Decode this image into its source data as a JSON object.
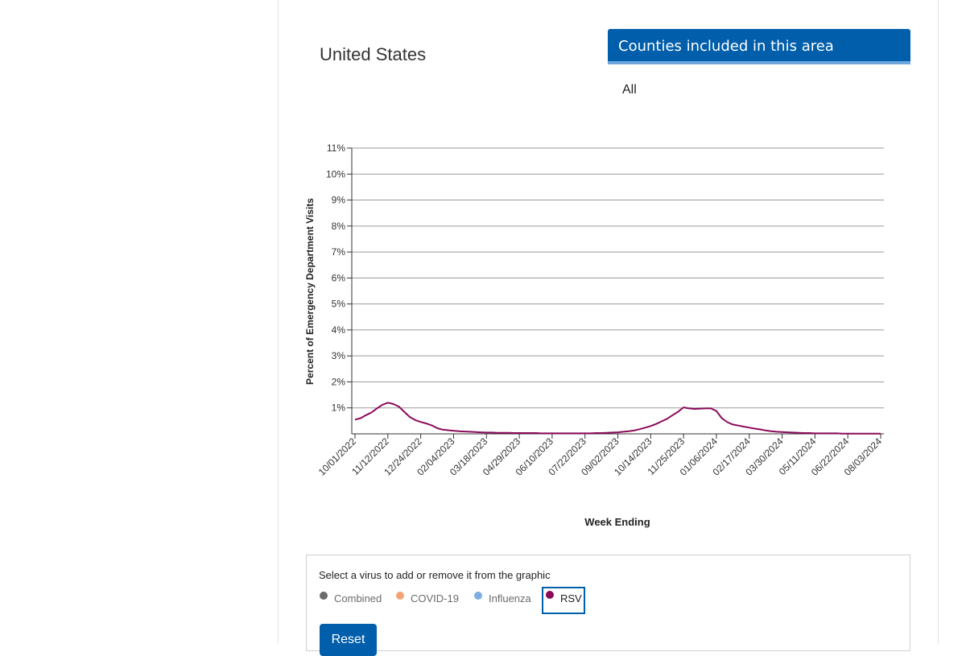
{
  "area": {
    "title": "United States"
  },
  "counties": {
    "header": "Counties included in this area",
    "value": "All"
  },
  "legend": {
    "instruction": "Select a virus to add or remove it from the graphic",
    "items": [
      {
        "label": "Combined",
        "color": "#6b6b6b",
        "active": false
      },
      {
        "label": "COVID-19",
        "color": "#f2a474",
        "active": false
      },
      {
        "label": "Influenza",
        "color": "#7eaee3",
        "active": false
      },
      {
        "label": "RSV",
        "color": "#8b0a5a",
        "active": true
      }
    ],
    "reset_label": "Reset"
  },
  "chart_data": {
    "type": "line",
    "title": "",
    "xlabel": "Week Ending",
    "ylabel": "Percent of Emergency Department Visits",
    "ylim": [
      0,
      11
    ],
    "y_ticks": [
      "1%",
      "2%",
      "3%",
      "4%",
      "5%",
      "6%",
      "7%",
      "8%",
      "9%",
      "10%",
      "11%"
    ],
    "x_tick_labels": [
      "10/01/2022",
      "11/12/2022",
      "12/24/2022",
      "02/04/2023",
      "03/18/2023",
      "04/29/2023",
      "06/10/2023",
      "07/22/2023",
      "09/02/2023",
      "10/14/2023",
      "11/25/2023",
      "01/06/2024",
      "02/17/2024",
      "03/30/2024",
      "05/11/2024",
      "06/22/2024",
      "08/03/2024"
    ],
    "grid": true,
    "series": [
      {
        "name": "RSV",
        "color": "#8b0a5a",
        "x": [
          "10/01/2022",
          "10/08/2022",
          "10/15/2022",
          "10/22/2022",
          "10/29/2022",
          "11/05/2022",
          "11/12/2022",
          "11/19/2022",
          "11/26/2022",
          "12/03/2022",
          "12/10/2022",
          "12/17/2022",
          "12/24/2022",
          "12/31/2022",
          "01/07/2023",
          "01/14/2023",
          "01/21/2023",
          "01/28/2023",
          "02/04/2023",
          "02/11/2023",
          "02/18/2023",
          "02/25/2023",
          "03/04/2023",
          "03/11/2023",
          "03/18/2023",
          "03/25/2023",
          "04/01/2023",
          "04/08/2023",
          "04/15/2023",
          "04/22/2023",
          "04/29/2023",
          "05/06/2023",
          "05/13/2023",
          "05/20/2023",
          "05/27/2023",
          "06/03/2023",
          "06/10/2023",
          "06/17/2023",
          "06/24/2023",
          "07/01/2023",
          "07/08/2023",
          "07/15/2023",
          "07/22/2023",
          "07/29/2023",
          "08/05/2023",
          "08/12/2023",
          "08/19/2023",
          "08/26/2023",
          "09/02/2023",
          "09/09/2023",
          "09/16/2023",
          "09/23/2023",
          "09/30/2023",
          "10/07/2023",
          "10/14/2023",
          "10/21/2023",
          "10/28/2023",
          "11/04/2023",
          "11/11/2023",
          "11/18/2023",
          "11/25/2023",
          "12/02/2023",
          "12/09/2023",
          "12/16/2023",
          "12/23/2023",
          "12/30/2023",
          "01/06/2024",
          "01/13/2024",
          "01/20/2024",
          "01/27/2024",
          "02/03/2024",
          "02/10/2024",
          "02/17/2024",
          "02/24/2024",
          "03/02/2024",
          "03/09/2024",
          "03/16/2024",
          "03/23/2024",
          "03/30/2024",
          "04/06/2024",
          "04/13/2024",
          "04/20/2024",
          "04/27/2024",
          "05/04/2024",
          "05/11/2024",
          "05/18/2024",
          "05/25/2024",
          "06/01/2024",
          "06/08/2024",
          "06/15/2024",
          "06/22/2024",
          "06/29/2024",
          "07/06/2024",
          "07/13/2024",
          "07/20/2024",
          "07/27/2024",
          "08/03/2024"
        ],
        "y": [
          0.55,
          0.6,
          0.72,
          0.82,
          0.98,
          1.12,
          1.2,
          1.15,
          1.05,
          0.85,
          0.65,
          0.53,
          0.46,
          0.4,
          0.33,
          0.22,
          0.16,
          0.14,
          0.12,
          0.1,
          0.09,
          0.08,
          0.07,
          0.06,
          0.05,
          0.05,
          0.04,
          0.04,
          0.04,
          0.03,
          0.03,
          0.03,
          0.03,
          0.03,
          0.02,
          0.02,
          0.02,
          0.02,
          0.02,
          0.02,
          0.02,
          0.02,
          0.02,
          0.02,
          0.03,
          0.03,
          0.04,
          0.05,
          0.06,
          0.08,
          0.1,
          0.13,
          0.18,
          0.24,
          0.3,
          0.38,
          0.48,
          0.58,
          0.72,
          0.85,
          1.02,
          0.98,
          0.96,
          0.97,
          0.98,
          0.98,
          0.88,
          0.6,
          0.45,
          0.36,
          0.32,
          0.28,
          0.24,
          0.2,
          0.17,
          0.13,
          0.1,
          0.08,
          0.07,
          0.06,
          0.05,
          0.04,
          0.03,
          0.03,
          0.02,
          0.02,
          0.02,
          0.02,
          0.02,
          0.01,
          0.01,
          0.01,
          0.01,
          0.01,
          0.01,
          0.01,
          0.01
        ]
      }
    ]
  }
}
